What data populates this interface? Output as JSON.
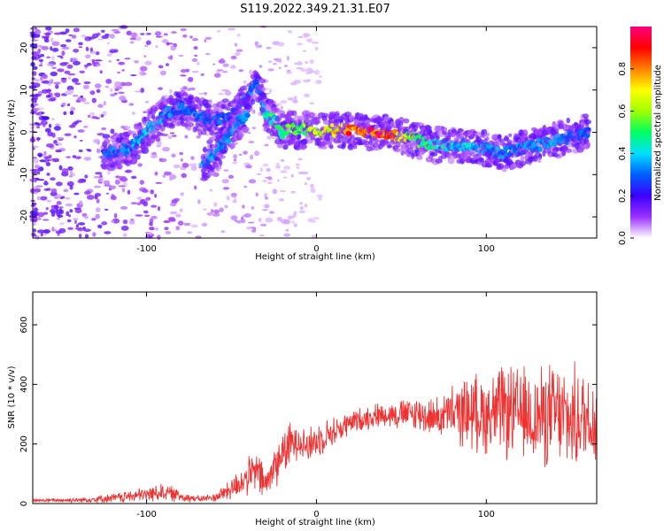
{
  "title": "S119.2022.349.21.31.E07",
  "chart_data": [
    {
      "type": "heatmap",
      "xlabel": "Height of straight line (km)",
      "ylabel": "Frequency (Hz)",
      "xlim": [
        -167,
        165
      ],
      "ylim": [
        -25,
        25
      ],
      "xticks": [
        -100,
        0,
        100
      ],
      "yticks": [
        -20,
        -10,
        0,
        10,
        20
      ],
      "colorbar": {
        "label": "Normalized spectral amplitude",
        "range": [
          0,
          1
        ],
        "ticks": [
          "0.0",
          "0.2",
          "0.4",
          "0.6",
          "0.8"
        ],
        "colors": [
          "#ffffff",
          "#9b30ff",
          "#3a00ff",
          "#0060ff",
          "#00e0ff",
          "#00ff60",
          "#a0ff00",
          "#ffff00",
          "#ff8000",
          "#ff0000",
          "#ff0080"
        ]
      },
      "ridge": {
        "x": [
          -125,
          -110,
          -100,
          -90,
          -80,
          -70,
          -60,
          -50,
          -40,
          -35,
          -30,
          -25,
          -20,
          -15,
          -10,
          -5,
          0,
          10,
          20,
          30,
          40,
          50,
          60,
          70,
          80,
          90,
          100,
          110,
          120,
          130,
          140,
          150,
          160
        ],
        "y": [
          -5,
          -4,
          0,
          4,
          6,
          4,
          3,
          4,
          8,
          12,
          4,
          3,
          0,
          1,
          0,
          1,
          0,
          0.5,
          0.5,
          0,
          0,
          -1,
          -2,
          -3,
          -3,
          -3,
          -4,
          -5,
          -4,
          -3,
          -2,
          -1,
          0
        ],
        "amplitude": [
          0.3,
          0.35,
          0.4,
          0.35,
          0.3,
          0.3,
          0.3,
          0.3,
          0.35,
          0.3,
          0.45,
          0.5,
          0.55,
          0.55,
          0.55,
          0.6,
          0.65,
          0.7,
          0.85,
          0.9,
          0.95,
          0.7,
          0.55,
          0.45,
          0.4,
          0.4,
          0.35,
          0.35,
          0.35,
          0.35,
          0.35,
          0.3,
          0.3
        ]
      },
      "branch": {
        "x": [
          -67,
          -60,
          -55,
          -50,
          -45,
          -40
        ],
        "y": [
          -8,
          -5,
          -3,
          0,
          3,
          5
        ],
        "amplitude": [
          0.35,
          0.35,
          0.35,
          0.35,
          0.35,
          0.35
        ]
      }
    },
    {
      "type": "line",
      "xlabel": "Height of straight line (km)",
      "ylabel": "SNR (10 * v/v)",
      "xlim": [
        -167,
        165
      ],
      "ylim": [
        0,
        710
      ],
      "xticks": [
        -100,
        0,
        100
      ],
      "yticks": [
        0,
        200,
        400,
        600
      ],
      "series": [
        {
          "color": "#ee3333",
          "x": [
            -167,
            -140,
            -120,
            -100,
            -90,
            -80,
            -70,
            -60,
            -50,
            -45,
            -40,
            -35,
            -30,
            -25,
            -20,
            -15,
            -10,
            -5,
            0,
            5,
            10,
            20,
            30,
            40,
            50,
            60,
            70,
            80,
            90,
            100,
            110,
            120,
            130,
            140,
            150,
            160,
            165
          ],
          "y": [
            10,
            12,
            18,
            30,
            40,
            25,
            15,
            20,
            50,
            70,
            90,
            110,
            60,
            120,
            170,
            200,
            220,
            190,
            210,
            230,
            240,
            270,
            290,
            300,
            300,
            300,
            290,
            300,
            310,
            300,
            310,
            300,
            290,
            300,
            280,
            290,
            280
          ],
          "spread": [
            5,
            8,
            15,
            25,
            30,
            20,
            10,
            15,
            40,
            50,
            60,
            70,
            60,
            70,
            80,
            70,
            60,
            60,
            60,
            50,
            50,
            40,
            40,
            40,
            50,
            60,
            60,
            90,
            120,
            130,
            150,
            150,
            160,
            170,
            170,
            160,
            150
          ]
        }
      ]
    }
  ]
}
